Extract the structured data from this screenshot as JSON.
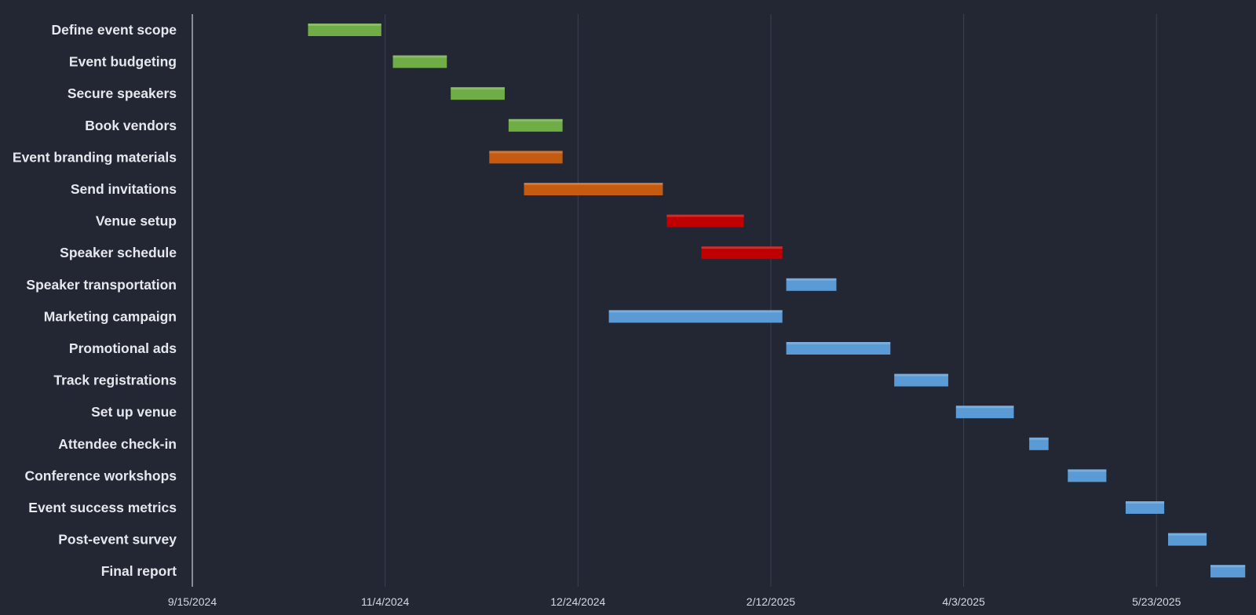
{
  "chart_data": {
    "type": "bar",
    "orientation": "horizontal",
    "x_axis_type": "date",
    "x_ticks": [
      "9/15/2024",
      "11/4/2024",
      "12/24/2024",
      "2/12/2025",
      "4/3/2025",
      "5/23/2025"
    ],
    "xlim": [
      "2024-09-15",
      "2025-06-30"
    ],
    "grid": true,
    "legend": "none",
    "colors": {
      "background": "#232733",
      "planning": "#70ad47",
      "design": "#c55a11",
      "logistics": "#c00000",
      "execution": "#5b9bd5"
    },
    "tasks": [
      {
        "name": "Define event scope",
        "start": "2024-10-15",
        "end": "2024-11-03",
        "color": "#70ad47"
      },
      {
        "name": "Event budgeting",
        "start": "2024-11-06",
        "end": "2024-11-20",
        "color": "#70ad47"
      },
      {
        "name": "Secure speakers",
        "start": "2024-11-21",
        "end": "2024-12-05",
        "color": "#70ad47"
      },
      {
        "name": "Book vendors",
        "start": "2024-12-06",
        "end": "2024-12-20",
        "color": "#70ad47"
      },
      {
        "name": "Event branding materials",
        "start": "2024-12-01",
        "end": "2024-12-20",
        "color": "#c55a11"
      },
      {
        "name": "Send invitations",
        "start": "2024-12-10",
        "end": "2025-01-15",
        "color": "#c55a11"
      },
      {
        "name": "Venue setup",
        "start": "2025-01-16",
        "end": "2025-02-05",
        "color": "#c00000"
      },
      {
        "name": "Speaker schedule",
        "start": "2025-01-25",
        "end": "2025-02-15",
        "color": "#c00000"
      },
      {
        "name": "Speaker transportation",
        "start": "2025-02-16",
        "end": "2025-03-01",
        "color": "#5b9bd5"
      },
      {
        "name": "Marketing campaign",
        "start": "2025-01-01",
        "end": "2025-02-15",
        "color": "#5b9bd5"
      },
      {
        "name": "Promotional ads",
        "start": "2025-02-16",
        "end": "2025-03-15",
        "color": "#5b9bd5"
      },
      {
        "name": "Track registrations",
        "start": "2025-03-16",
        "end": "2025-03-30",
        "color": "#5b9bd5"
      },
      {
        "name": "Set up venue",
        "start": "2025-04-01",
        "end": "2025-04-16",
        "color": "#5b9bd5"
      },
      {
        "name": "Attendee check-in",
        "start": "2025-04-20",
        "end": "2025-04-25",
        "color": "#5b9bd5"
      },
      {
        "name": "Conference workshops",
        "start": "2025-04-30",
        "end": "2025-05-10",
        "color": "#5b9bd5"
      },
      {
        "name": "Event success metrics",
        "start": "2025-05-15",
        "end": "2025-05-25",
        "color": "#5b9bd5"
      },
      {
        "name": "Post-event survey",
        "start": "2025-05-26",
        "end": "2025-06-05",
        "color": "#5b9bd5"
      },
      {
        "name": "Final report",
        "start": "2025-06-06",
        "end": "2025-06-15",
        "color": "#5b9bd5"
      }
    ]
  }
}
